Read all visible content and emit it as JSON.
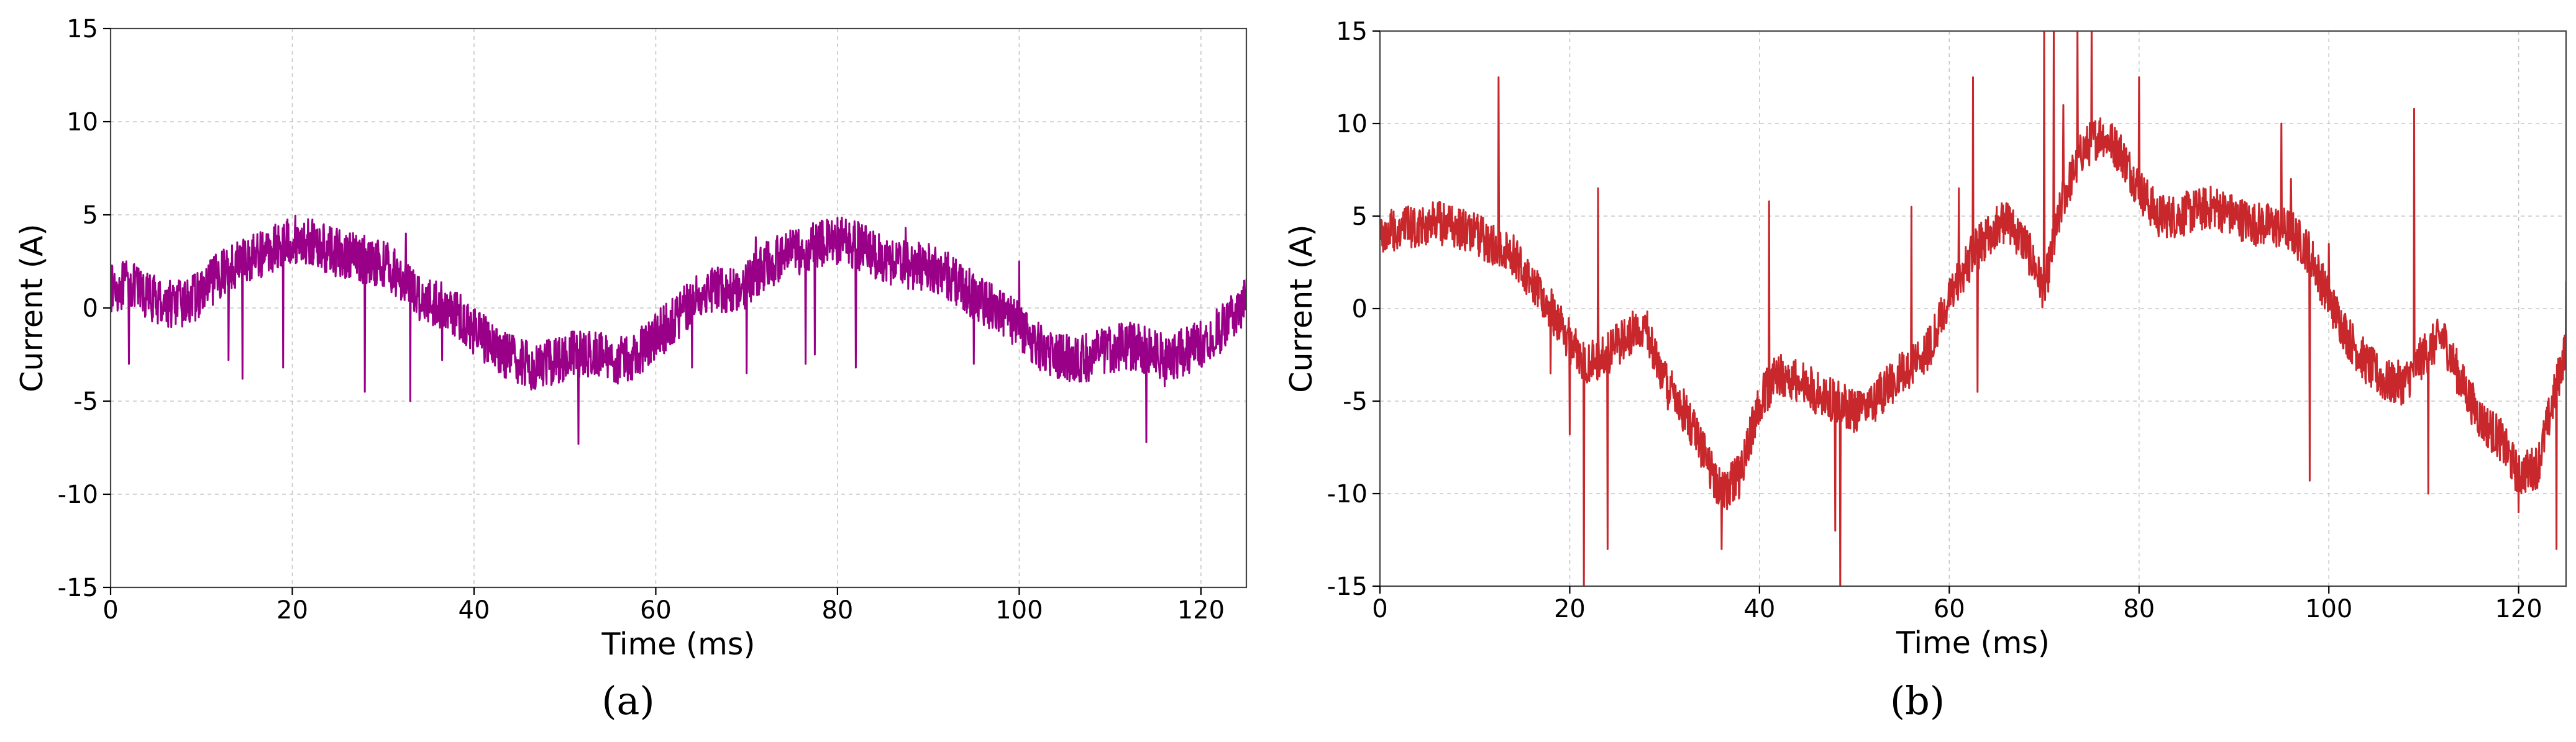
{
  "figure": {
    "captions": [
      "(a)",
      "(b)"
    ]
  },
  "chart_data": [
    {
      "type": "line",
      "panel": "(a)",
      "color": "#990087",
      "xlabel": "Time (ms)",
      "ylabel": "Current (A)",
      "xlim": [
        0,
        125
      ],
      "ylim": [
        -15,
        15
      ],
      "xticks": [
        0,
        20,
        40,
        60,
        80,
        100,
        120
      ],
      "yticks": [
        -15,
        -10,
        -5,
        0,
        5,
        10,
        15
      ],
      "grid": true,
      "noise_amplitude": 1.3,
      "x": [
        0,
        2,
        4,
        6,
        8,
        10,
        12,
        14,
        16,
        18,
        20,
        22,
        24,
        26,
        28,
        30,
        32,
        34,
        36,
        38,
        40,
        42,
        44,
        46,
        48,
        50,
        52,
        54,
        56,
        58,
        60,
        62,
        64,
        66,
        68,
        70,
        72,
        74,
        76,
        78,
        80,
        82,
        84,
        86,
        88,
        90,
        92,
        94,
        96,
        98,
        100,
        102,
        104,
        106,
        108,
        110,
        112,
        114,
        116,
        118,
        120,
        122,
        125
      ],
      "y": [
        1.0,
        1.3,
        0.6,
        0.3,
        0.2,
        0.8,
        1.8,
        2.4,
        2.8,
        3.2,
        3.7,
        3.5,
        3.1,
        2.8,
        2.6,
        2.4,
        1.6,
        0.6,
        0.2,
        -0.3,
        -1.2,
        -2.0,
        -2.7,
        -3.1,
        -3.0,
        -2.6,
        -2.4,
        -2.6,
        -2.8,
        -2.5,
        -1.5,
        -0.7,
        0.4,
        1.1,
        0.9,
        1.2,
        2.2,
        2.8,
        3.1,
        3.4,
        3.6,
        3.4,
        2.9,
        2.5,
        2.3,
        2.2,
        1.8,
        1.0,
        0.4,
        -0.2,
        -1.0,
        -2.0,
        -2.5,
        -2.8,
        -2.6,
        -2.2,
        -2.0,
        -2.3,
        -2.6,
        -2.4,
        -1.9,
        -1.2,
        0.3
      ],
      "spikes": [
        [
          2,
          -3.0
        ],
        [
          13,
          -2.8
        ],
        [
          14.5,
          -3.8
        ],
        [
          19,
          -3.2
        ],
        [
          28,
          -4.5
        ],
        [
          32.5,
          4.0
        ],
        [
          33,
          -5.0
        ],
        [
          36.5,
          -2.8
        ],
        [
          51.5,
          -7.3
        ],
        [
          64,
          -3.2
        ],
        [
          70,
          -3.5
        ],
        [
          71,
          3.8
        ],
        [
          76.5,
          -3.0
        ],
        [
          77.5,
          -2.5
        ],
        [
          82,
          -3.2
        ],
        [
          87.5,
          4.3
        ],
        [
          95,
          -3.0
        ],
        [
          100,
          2.5
        ],
        [
          114,
          -7.2
        ],
        [
          116,
          -4.2
        ]
      ]
    },
    {
      "type": "line",
      "panel": "(b)",
      "color": "#c8272c",
      "xlabel": "Time (ms)",
      "ylabel": "Current (A)",
      "xlim": [
        0,
        125
      ],
      "ylim": [
        -15,
        15
      ],
      "xticks": [
        0,
        20,
        40,
        60,
        80,
        100,
        120
      ],
      "yticks": [
        -15,
        -10,
        -5,
        0,
        5,
        10,
        15
      ],
      "grid": true,
      "noise_amplitude": 1.2,
      "x": [
        0,
        2,
        4,
        6,
        8,
        10,
        12,
        14,
        16,
        18,
        20,
        22,
        24,
        26,
        28,
        30,
        32,
        34,
        36,
        38,
        40,
        42,
        44,
        46,
        48,
        50,
        52,
        54,
        56,
        58,
        60,
        62,
        64,
        66,
        68,
        70,
        72,
        74,
        76,
        78,
        80,
        82,
        84,
        86,
        88,
        90,
        92,
        94,
        96,
        98,
        100,
        102,
        104,
        106,
        108,
        110,
        112,
        114,
        116,
        118,
        120,
        122,
        125
      ],
      "y": [
        4.0,
        4.3,
        4.5,
        4.6,
        4.4,
        4.0,
        3.5,
        3.0,
        1.5,
        0.0,
        -1.8,
        -3.0,
        -2.5,
        -1.5,
        -1.0,
        -4.0,
        -5.5,
        -7.5,
        -10.0,
        -9.0,
        -5.0,
        -3.5,
        -4.0,
        -4.5,
        -5.0,
        -5.5,
        -5.0,
        -4.0,
        -3.0,
        -2.0,
        0.5,
        2.5,
        4.0,
        4.8,
        3.5,
        1.0,
        6.0,
        8.5,
        9.5,
        8.5,
        6.5,
        5.0,
        5.0,
        5.3,
        5.5,
        5.0,
        4.6,
        4.5,
        4.2,
        3.0,
        0.5,
        -1.5,
        -3.0,
        -4.0,
        -4.0,
        -2.5,
        -1.5,
        -4.0,
        -6.0,
        -7.0,
        -9.0,
        -8.5,
        -2.0
      ],
      "spikes": [
        [
          12.5,
          12.5
        ],
        [
          18,
          -3.5
        ],
        [
          20,
          -6.8
        ],
        [
          21.5,
          -15.5
        ],
        [
          23,
          6.5
        ],
        [
          24,
          -13.0
        ],
        [
          36,
          -13.0
        ],
        [
          41,
          5.8
        ],
        [
          48,
          -12.0
        ],
        [
          48.5,
          -15.5
        ],
        [
          56,
          5.5
        ],
        [
          61,
          6.5
        ],
        [
          62.5,
          12.5
        ],
        [
          63,
          -4.5
        ],
        [
          70,
          15.5
        ],
        [
          71,
          15.5
        ],
        [
          72,
          11.0
        ],
        [
          73.5,
          15.5
        ],
        [
          75,
          15.5
        ],
        [
          76.5,
          9.0
        ],
        [
          80,
          12.5
        ],
        [
          95,
          10.0
        ],
        [
          96,
          7.0
        ],
        [
          98,
          -9.3
        ],
        [
          100,
          3.5
        ],
        [
          109,
          10.8
        ],
        [
          110.5,
          -10.0
        ],
        [
          120,
          -11.0
        ],
        [
          124,
          -13.0
        ],
        [
          125,
          1.5
        ]
      ]
    }
  ]
}
